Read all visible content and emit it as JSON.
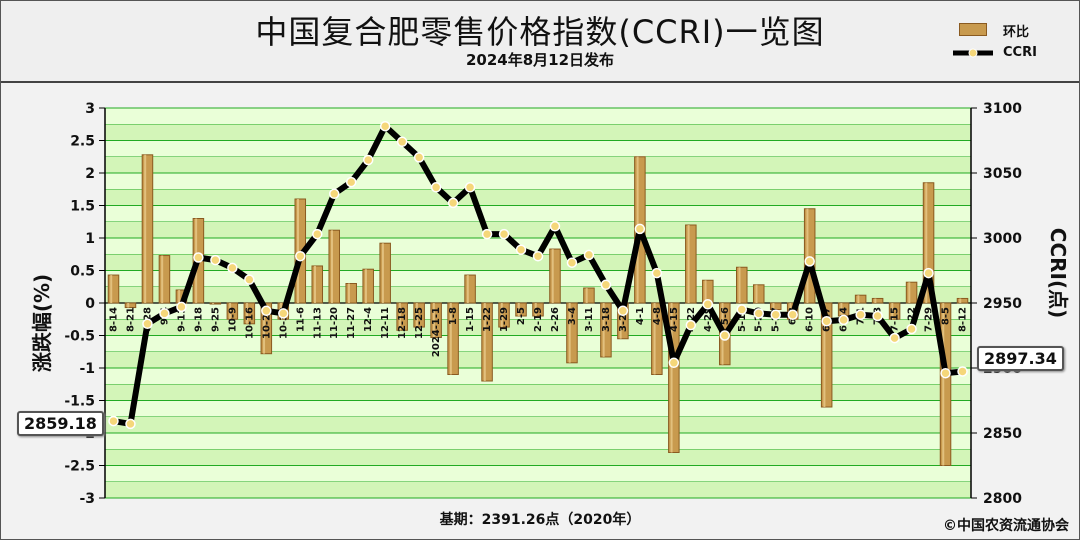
{
  "header": {
    "title": "中国复合肥零售价格指数(CCRI)一览图",
    "subtitle": "2024年8月12日发布"
  },
  "legend": {
    "bar_label": "环比",
    "line_label": "CCRI"
  },
  "footer": {
    "basis": "基期：2391.26点（2020年）",
    "copyright": "©中国农资流通协会"
  },
  "callouts": {
    "first": "2859.18",
    "last": "2897.34"
  },
  "colors": {
    "bar_fill": "#c89a4e",
    "bar_edge": "#8a5a20",
    "line": "#000000",
    "marker": "#f5d77a",
    "band_light": "#eaffd8",
    "band_dark": "#d3f5b8",
    "grid": "#22aa22"
  },
  "chart_data": {
    "type": "bar+line",
    "categories": [
      "8-14",
      "8-21",
      "8-28",
      "9-4",
      "9-11",
      "9-18",
      "9-25",
      "10-9",
      "10-16",
      "10-23",
      "10-30",
      "11-6",
      "11-13",
      "11-20",
      "11-27",
      "12-4",
      "12-11",
      "12-18",
      "12-25",
      "2024-1-1",
      "1-8",
      "1-15",
      "1-22",
      "1-29",
      "2-5",
      "2-19",
      "2-26",
      "3-4",
      "3-11",
      "3-18",
      "3-25",
      "4-1",
      "4-8",
      "4-15",
      "4-22",
      "4-29",
      "5-6",
      "5-13",
      "5-20",
      "5-27",
      "6-3",
      "6-10",
      "6-17",
      "6-24",
      "7-1",
      "7-8",
      "7-15",
      "7-22",
      "7-29",
      "8-5",
      "8-12"
    ],
    "series": [
      {
        "name": "环比",
        "axis": "left",
        "type": "bar",
        "values": [
          0.43,
          -0.07,
          2.28,
          0.73,
          0.2,
          1.3,
          0,
          -0.25,
          -0.32,
          -0.78,
          -0.25,
          1.6,
          0.57,
          1.12,
          0.3,
          0.52,
          0.92,
          -0.42,
          -0.37,
          -0.53,
          -1.1,
          0.43,
          -1.2,
          -0.37,
          -0.2,
          -0.2,
          0.83,
          -0.92,
          0.23,
          -0.83,
          -0.55,
          2.25,
          -1.1,
          -2.3,
          1.2,
          0.35,
          -0.95,
          0.55,
          0.28,
          -0.1,
          -0.25,
          1.45,
          -1.6,
          -0.2,
          0.12,
          0.07,
          -0.25,
          0.32,
          1.85,
          -2.5,
          0.07
        ]
      },
      {
        "name": "CCRI",
        "axis": "right",
        "type": "line",
        "values": [
          2859.18,
          2857,
          2934,
          2942,
          2947,
          2985,
          2983,
          2977,
          2968,
          2944,
          2942,
          2986,
          3003,
          3034,
          3043,
          3060,
          3086,
          3074,
          3062,
          3039,
          3027,
          3039,
          3003,
          3003,
          2991,
          2986,
          3009,
          2981,
          2987,
          2964,
          2944,
          3007,
          2973,
          2904,
          2933,
          2949,
          2925,
          2945,
          2942,
          2941,
          2941,
          2982,
          2936,
          2937,
          2941,
          2940,
          2923,
          2930,
          2973,
          2896,
          2897.34
        ]
      }
    ],
    "y_left": {
      "label": "涨跌幅(%)",
      "ylim": [
        -3,
        3
      ],
      "ticks": [
        -3,
        -2.5,
        -2,
        -1.5,
        -1,
        -0.5,
        0,
        0.5,
        1,
        1.5,
        2,
        2.5,
        3
      ]
    },
    "y_right": {
      "label": "CCRI(点)",
      "ylim": [
        2800,
        3100
      ],
      "ticks": [
        2800,
        2850,
        2900,
        2950,
        3000,
        3050,
        3100
      ]
    },
    "grid": true,
    "legend_position": "top-right"
  }
}
